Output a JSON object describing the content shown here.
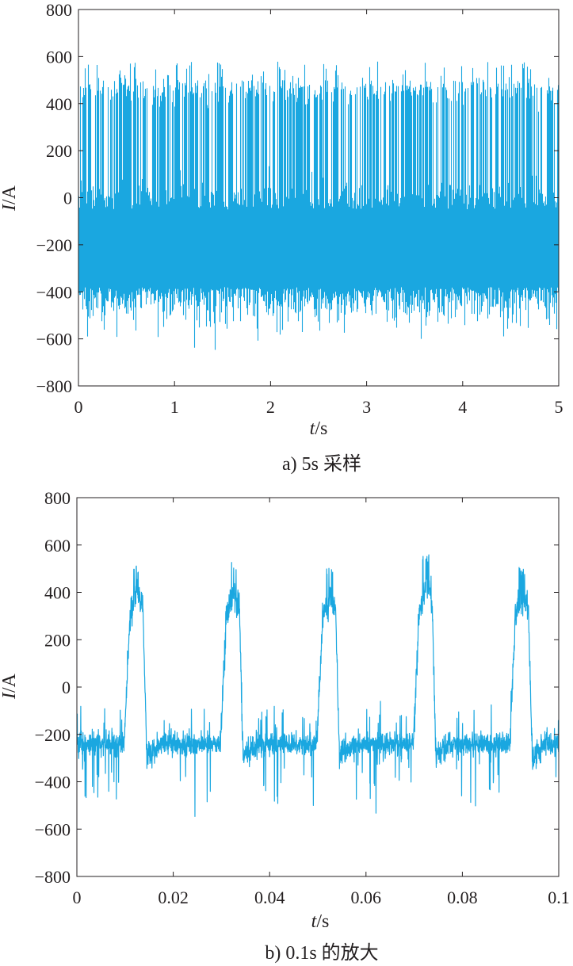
{
  "chart_data": [
    {
      "type": "line",
      "title": "",
      "caption": "a) 5s 采样",
      "xlabel_italic": "t",
      "xlabel_unit": "/s",
      "ylabel_italic": "I",
      "ylabel_unit": "/A",
      "xlim": [
        0,
        5
      ],
      "ylim": [
        -800,
        800
      ],
      "x_ticks": [
        0,
        1,
        2,
        3,
        4,
        5
      ],
      "x_tick_labels": [
        "0",
        "1",
        "2",
        "3",
        "4",
        "5"
      ],
      "y_ticks": [
        -800,
        -600,
        -400,
        -200,
        0,
        200,
        400,
        600,
        800
      ],
      "y_tick_labels": [
        "−800",
        "−600",
        "−400",
        "−200",
        "0",
        "200",
        "400",
        "600",
        "800"
      ],
      "grid": false,
      "color": "#1aa7e0",
      "signal": {
        "description_period_s": 0.02,
        "baseline_A": -250,
        "peak_A": 500,
        "max_A": 580,
        "min_A": -650
      }
    },
    {
      "type": "line",
      "title": "",
      "caption": "b) 0.1s 的放大",
      "xlabel_italic": "t",
      "xlabel_unit": "/s",
      "ylabel_italic": "I",
      "ylabel_unit": "/A",
      "xlim": [
        0,
        0.1
      ],
      "ylim": [
        -800,
        800
      ],
      "x_ticks": [
        0,
        0.02,
        0.04,
        0.06,
        0.08,
        0.1
      ],
      "x_tick_labels": [
        "0",
        "0.02",
        "0.04",
        "0.06",
        "0.08",
        "0.1"
      ],
      "y_ticks": [
        -800,
        -600,
        -400,
        -200,
        0,
        200,
        400,
        600,
        800
      ],
      "y_tick_labels": [
        "−800",
        "−600",
        "−400",
        "−200",
        "0",
        "200",
        "400",
        "600",
        "800"
      ],
      "grid": false,
      "color": "#1aa7e0",
      "pulses": [
        {
          "rise_s": 0.0098,
          "peak_s": 0.0125,
          "peak_A": 520,
          "fall_end_s": 0.0145
        },
        {
          "rise_s": 0.0298,
          "peak_s": 0.0325,
          "peak_A": 530,
          "fall_end_s": 0.0345
        },
        {
          "rise_s": 0.0498,
          "peak_s": 0.0525,
          "peak_A": 510,
          "fall_end_s": 0.0545
        },
        {
          "rise_s": 0.0698,
          "peak_s": 0.0725,
          "peak_A": 560,
          "fall_end_s": 0.0745
        },
        {
          "rise_s": 0.0898,
          "peak_s": 0.0925,
          "peak_A": 510,
          "fall_end_s": 0.0945
        }
      ],
      "baseline_A": -240,
      "min_A": -590
    }
  ]
}
